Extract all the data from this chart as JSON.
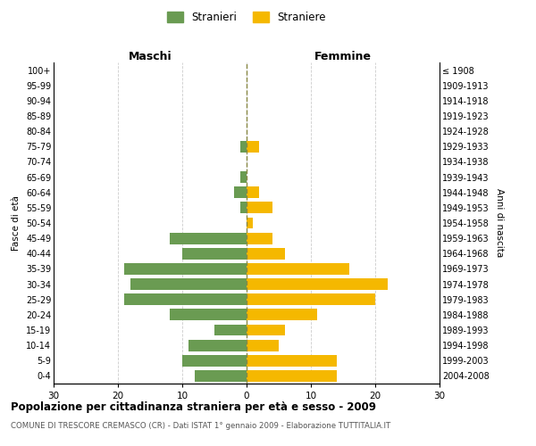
{
  "age_groups": [
    "100+",
    "95-99",
    "90-94",
    "85-89",
    "80-84",
    "75-79",
    "70-74",
    "65-69",
    "60-64",
    "55-59",
    "50-54",
    "45-49",
    "40-44",
    "35-39",
    "30-34",
    "25-29",
    "20-24",
    "15-19",
    "10-14",
    "5-9",
    "0-4"
  ],
  "birth_years": [
    "≤ 1908",
    "1909-1913",
    "1914-1918",
    "1919-1923",
    "1924-1928",
    "1929-1933",
    "1934-1938",
    "1939-1943",
    "1944-1948",
    "1949-1953",
    "1954-1958",
    "1959-1963",
    "1964-1968",
    "1969-1973",
    "1974-1978",
    "1979-1983",
    "1984-1988",
    "1989-1993",
    "1994-1998",
    "1999-2003",
    "2004-2008"
  ],
  "maschi": [
    0,
    0,
    0,
    0,
    0,
    1,
    0,
    1,
    2,
    1,
    0,
    12,
    10,
    19,
    18,
    19,
    12,
    5,
    9,
    10,
    8
  ],
  "femmine": [
    0,
    0,
    0,
    0,
    0,
    2,
    0,
    0,
    2,
    4,
    1,
    4,
    6,
    16,
    22,
    20,
    11,
    6,
    5,
    14,
    14
  ],
  "color_maschi": "#6a9b52",
  "color_femmine": "#f5b800",
  "title": "Popolazione per cittadinanza straniera per età e sesso - 2009",
  "subtitle": "COMUNE DI TRESCORE CREMASCO (CR) - Dati ISTAT 1° gennaio 2009 - Elaborazione TUTTITALIA.IT",
  "xlabel_left": "Maschi",
  "xlabel_right": "Femmine",
  "ylabel_left": "Fasce di età",
  "ylabel_right": "Anni di nascita",
  "legend_maschi": "Stranieri",
  "legend_femmine": "Straniere",
  "xlim": 30,
  "background_color": "#ffffff",
  "grid_color": "#cccccc"
}
